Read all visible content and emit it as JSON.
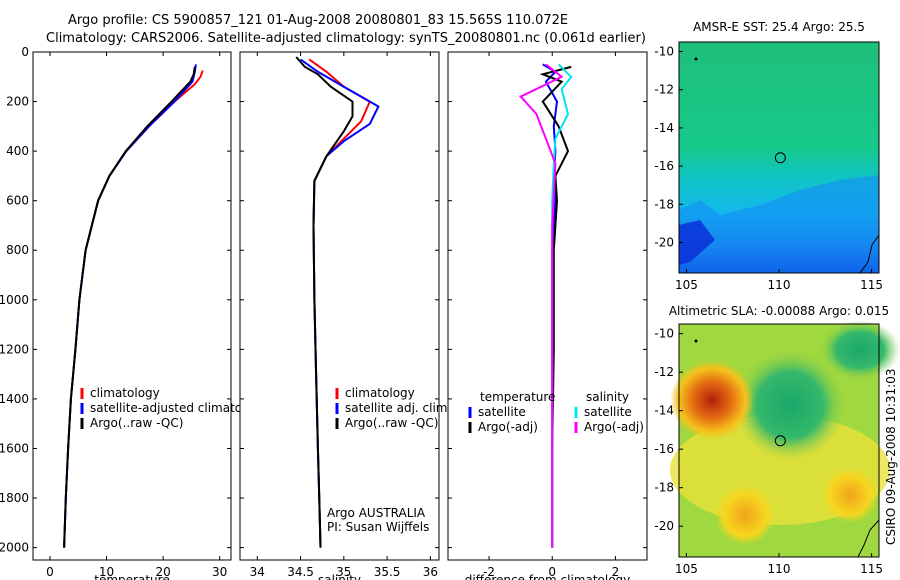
{
  "header": {
    "line1": "Argo profile: CS 5900857_121 01-Aug-2008 20080801_83 15.565S 110.072E",
    "line2": "Climatology: CARS2006. Satellite-adjusted climatology: synTS_20080801.nc (0.061d earlier)"
  },
  "credit": "CSIRO 09-Aug-2008 10:31:03",
  "colors": {
    "climatology": "#ff0000",
    "satellite": "#0000ff",
    "argo": "#000000",
    "cyan": "#00e5ee",
    "magenta": "#ff00ff"
  },
  "chart_data": [
    {
      "type": "line",
      "id": "temperature",
      "xlabel": "temperature",
      "xlim": [
        -3,
        32
      ],
      "ylim": [
        2050,
        0
      ],
      "xticks": [
        0,
        10,
        20,
        30
      ],
      "yticks": [
        0,
        200,
        400,
        600,
        800,
        1000,
        1200,
        1400,
        1600,
        1800,
        2000
      ],
      "legend": [
        "climatology",
        "satellite-adjusted climatology",
        "Argo(..raw -QC)"
      ],
      "series": [
        {
          "name": "climatology",
          "color": "#ff0000",
          "x": [
            27,
            26.6,
            25.6,
            22,
            17.5,
            13.5,
            10.5,
            8.5,
            6.3,
            5.2,
            4.5,
            3.7,
            3.2,
            2.8,
            2.5
          ],
          "y": [
            75,
            100,
            130,
            200,
            300,
            400,
            500,
            600,
            800,
            1000,
            1200,
            1400,
            1600,
            1800,
            2000
          ]
        },
        {
          "name": "satellite-adjusted climatology",
          "color": "#0000ff",
          "x": [
            25.8,
            25.6,
            25.2,
            22,
            17.5,
            13.5,
            10.5,
            8.5,
            6.3,
            5.2,
            4.5,
            3.7,
            3.2,
            2.8,
            2.5
          ],
          "y": [
            50,
            80,
            120,
            200,
            300,
            400,
            500,
            600,
            800,
            1000,
            1200,
            1400,
            1600,
            1800,
            2000
          ]
        },
        {
          "name": "Argo(..raw -QC)",
          "color": "#000000",
          "x": [
            25.6,
            25.4,
            24.8,
            21.5,
            17.2,
            13.4,
            10.5,
            8.5,
            6.3,
            5.2,
            4.5,
            3.7,
            3.2,
            2.8,
            2.5
          ],
          "y": [
            60,
            90,
            120,
            200,
            300,
            400,
            500,
            600,
            800,
            1000,
            1200,
            1400,
            1600,
            1800,
            2000
          ]
        }
      ]
    },
    {
      "type": "line",
      "id": "salinity",
      "xlabel": "salinity",
      "xlim": [
        33.8,
        36.1
      ],
      "ylim": [
        2050,
        0
      ],
      "xticks": [
        34,
        34.5,
        35,
        35.5,
        36
      ],
      "legend": [
        "climatology",
        "satellite adj. clim.",
        "Argo(..raw -QC)"
      ],
      "annotation": [
        "Argo AUSTRALIA",
        "PI: Susan Wijffels"
      ],
      "series": [
        {
          "name": "climatology",
          "color": "#ff0000",
          "x": [
            34.6,
            34.8,
            35.0,
            35.3,
            35.2,
            35.0,
            34.8,
            34.66,
            34.65,
            34.66,
            34.68,
            34.7,
            34.72,
            34.73
          ],
          "y": [
            30,
            80,
            140,
            200,
            280,
            350,
            420,
            520,
            700,
            1000,
            1300,
            1600,
            1850,
            2000
          ]
        },
        {
          "name": "satellite adj. clim.",
          "color": "#0000ff",
          "x": [
            34.5,
            34.7,
            35.0,
            35.4,
            35.3,
            35.0,
            34.8,
            34.66,
            34.65,
            34.66,
            34.68,
            34.7,
            34.72,
            34.73
          ],
          "y": [
            30,
            80,
            140,
            220,
            290,
            360,
            420,
            520,
            700,
            1000,
            1300,
            1600,
            1850,
            2000
          ]
        },
        {
          "name": "Argo(..raw -QC)",
          "color": "#000000",
          "x": [
            34.45,
            34.55,
            34.7,
            34.85,
            35.1,
            35.1,
            35.0,
            34.8,
            34.66,
            34.65,
            34.66,
            34.68,
            34.7,
            34.72,
            34.73
          ],
          "y": [
            20,
            60,
            90,
            140,
            200,
            260,
            320,
            420,
            520,
            700,
            1000,
            1300,
            1600,
            1850,
            2000
          ]
        }
      ]
    },
    {
      "type": "line",
      "id": "difference",
      "xlabel": "difference from climatology",
      "xlim": [
        -3.3,
        3
      ],
      "ylim": [
        2050,
        0
      ],
      "xticks": [
        -2,
        0,
        2
      ],
      "legend": [
        "temperature",
        "satellite",
        "Argo(-adj)",
        "salinity",
        "satellite",
        "Argo(-adj)"
      ],
      "series": [
        {
          "name": "temperature satellite",
          "color": "#0000ff",
          "x": [
            -0.3,
            0.1,
            -0.2,
            0.15,
            0.05,
            0.1,
            0.05,
            0.1,
            0.0,
            0.0,
            0.0,
            0.0
          ],
          "y": [
            50,
            80,
            120,
            200,
            300,
            400,
            500,
            600,
            800,
            1200,
            1600,
            2000
          ]
        },
        {
          "name": "temperature Argo(-adj)",
          "color": "#000000",
          "x": [
            0.6,
            -0.3,
            0.3,
            -0.3,
            0.2,
            0.5,
            0.1,
            0.15,
            0.05,
            0.05,
            0.0,
            0.0
          ],
          "y": [
            60,
            90,
            120,
            200,
            300,
            400,
            500,
            600,
            800,
            1200,
            1600,
            2000
          ]
        },
        {
          "name": "salinity satellite",
          "color": "#00e5ee",
          "x": [
            0.2,
            0.6,
            0.3,
            0.5,
            0.1,
            0.05,
            0.0,
            0.0,
            0.0,
            0.0
          ],
          "y": [
            50,
            100,
            150,
            250,
            350,
            450,
            600,
            900,
            1400,
            2000
          ]
        },
        {
          "name": "salinity Argo(-adj)",
          "color": "#ff00ff",
          "x": [
            -0.2,
            0.3,
            -1.0,
            -0.5,
            -0.2,
            0.1,
            0.0,
            0.0,
            0.0
          ],
          "y": [
            50,
            100,
            180,
            250,
            350,
            450,
            700,
            1200,
            2000
          ]
        }
      ]
    },
    {
      "type": "heatmap",
      "id": "sst",
      "title": "AMSR-E SST: 25.4 Argo: 25.5",
      "xlim": [
        104.6,
        115.4
      ],
      "ylim": [
        -21.6,
        -9.5
      ],
      "xticks": [
        105,
        110,
        115
      ],
      "yticks": [
        -10,
        -12,
        -14,
        -16,
        -18,
        -20
      ],
      "float_position": [
        110.072,
        -15.565
      ]
    },
    {
      "type": "heatmap",
      "id": "sla",
      "title": "Altimetric SLA: -0.00088 Argo: 0.015",
      "xlim": [
        104.6,
        115.4
      ],
      "ylim": [
        -21.6,
        -9.5
      ],
      "xticks": [
        105,
        110,
        115
      ],
      "yticks": [
        -10,
        -12,
        -14,
        -16,
        -18,
        -20
      ],
      "float_position": [
        110.072,
        -15.565
      ]
    }
  ]
}
